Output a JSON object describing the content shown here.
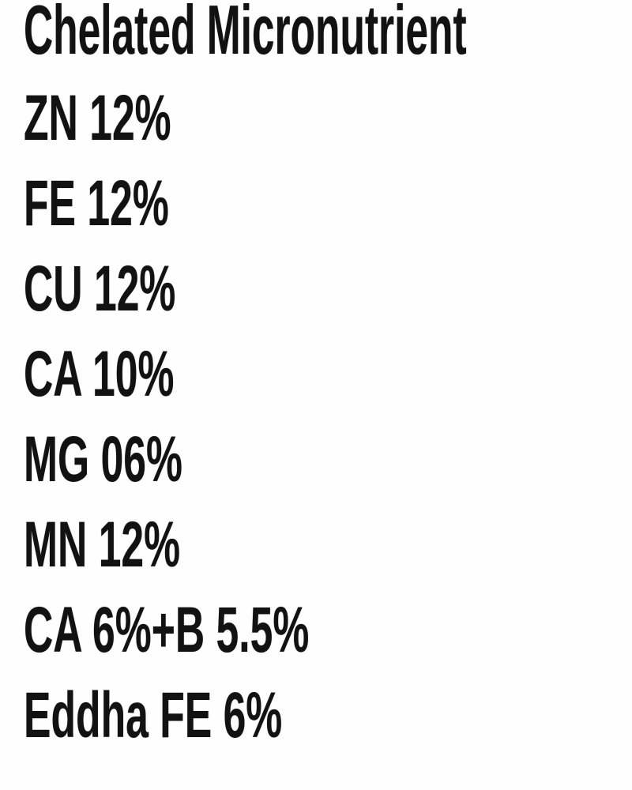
{
  "colors": {
    "background": "#fefefe",
    "text": "#121212"
  },
  "content": {
    "title": "Chelated Micronutrient",
    "lines": [
      "ZN 12%",
      "FE 12%",
      "CU 12%",
      "CA 10%",
      "MG 06%",
      "MN 12%",
      "CA 6%+B 5.5%",
      "Eddha FE 6%"
    ]
  }
}
